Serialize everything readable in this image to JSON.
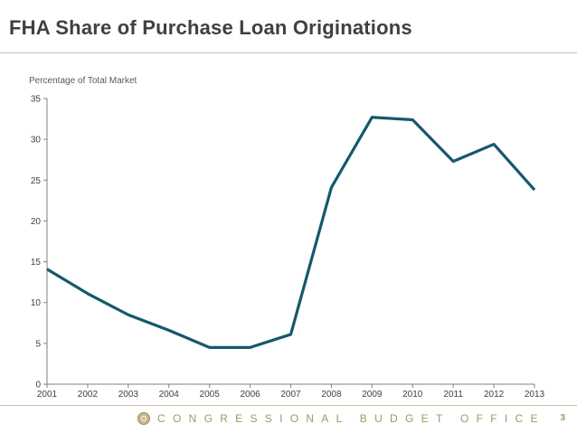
{
  "slide": {
    "title": "FHA Share of Purchase Loan Originations",
    "page_number": "3"
  },
  "footer": {
    "org_name": "CONGRESSIONAL BUDGET OFFICE",
    "seal_icon": "cbo-seal-icon"
  },
  "colors": {
    "line": "#14596b",
    "axis": "#808080",
    "title": "#404040",
    "footer_text": "#a4956a",
    "rule": "#c8c2a4"
  },
  "chart_data": {
    "type": "line",
    "title": "",
    "ylabel": "Percentage of Total Market",
    "xlabel": "",
    "x": [
      "2001",
      "2002",
      "2003",
      "2004",
      "2005",
      "2006",
      "2007",
      "2008",
      "2009",
      "2010",
      "2011",
      "2012",
      "2013"
    ],
    "series": [
      {
        "values": [
          14.1,
          11.1,
          8.5,
          6.6,
          4.5,
          4.5,
          6.1,
          24.1,
          32.7,
          32.4,
          27.3,
          29.4,
          23.8
        ]
      }
    ],
    "ylim": [
      0,
      35
    ],
    "yticks": [
      0,
      5,
      10,
      15,
      20,
      25,
      30,
      35
    ],
    "grid": false,
    "legend": "none"
  }
}
